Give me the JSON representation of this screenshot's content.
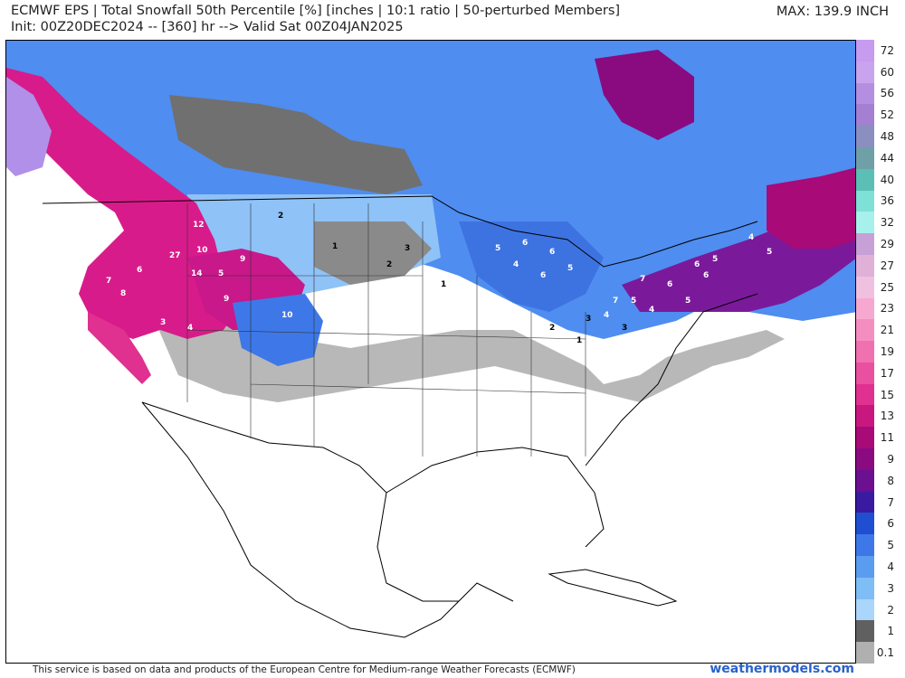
{
  "header": {
    "title_line1": "ECMWF EPS | Total Snowfall 50th Percentile [%] [inches | 10:1 ratio | 50-perturbed Members]",
    "title_line2": "Init: 00Z20DEC2024 -- [360] hr --> Valid Sat 00Z04JAN2025",
    "max_label": "MAX: 139.9 INCH"
  },
  "colorbar": {
    "ticks": [
      "72",
      "60",
      "56",
      "52",
      "48",
      "44",
      "40",
      "36",
      "32",
      "29",
      "27",
      "25",
      "23",
      "21",
      "19",
      "17",
      "15",
      "13",
      "11",
      "9",
      "8",
      "7",
      "6",
      "5",
      "4",
      "3",
      "2",
      "1",
      "0.1"
    ],
    "colors": [
      "#c79bf0",
      "#c9a3ee",
      "#b48ee0",
      "#a47fd2",
      "#8a8fbf",
      "#6fa0a8",
      "#5bbfb6",
      "#7fe0d8",
      "#a8f0ec",
      "#c8a0d8",
      "#e0b0d8",
      "#f0c0e0",
      "#f7a8d0",
      "#f58ec0",
      "#f070b0",
      "#ea50a0",
      "#e03090",
      "#c81880",
      "#a80a78",
      "#8a0a80",
      "#6a1090",
      "#3a1aa0",
      "#1f4fd0",
      "#3e78e8",
      "#5a9cf0",
      "#7fbdf5",
      "#a9d6fa",
      "#606060",
      "#b0b0b0"
    ]
  },
  "map_values": [
    {
      "v": "12"
    },
    {
      "v": "10"
    },
    {
      "v": "27"
    },
    {
      "v": "14"
    },
    {
      "v": "9"
    },
    {
      "v": "9"
    },
    {
      "v": "10"
    },
    {
      "v": "7"
    },
    {
      "v": "8"
    },
    {
      "v": "6"
    },
    {
      "v": "5"
    },
    {
      "v": "4"
    },
    {
      "v": "3"
    },
    {
      "v": "2"
    },
    {
      "v": "1"
    },
    {
      "v": "6"
    },
    {
      "v": "5"
    },
    {
      "v": "4"
    },
    {
      "v": "6"
    },
    {
      "v": "5"
    },
    {
      "v": "6"
    },
    {
      "v": "7"
    },
    {
      "v": "5"
    },
    {
      "v": "4"
    },
    {
      "v": "6"
    },
    {
      "v": "5"
    },
    {
      "v": "3"
    },
    {
      "v": "2"
    },
    {
      "v": "1"
    },
    {
      "v": "4"
    },
    {
      "v": "5"
    },
    {
      "v": "6"
    },
    {
      "v": "2"
    },
    {
      "v": "3"
    },
    {
      "v": "1"
    },
    {
      "v": "7"
    },
    {
      "v": "6"
    },
    {
      "v": "5"
    },
    {
      "v": "4"
    },
    {
      "v": "3"
    }
  ],
  "footer": {
    "credit": "This service is based on data and products of the European Centre for Medium-range Weather Forecasts (ECMWF)",
    "brand": "weathermodels.com"
  }
}
